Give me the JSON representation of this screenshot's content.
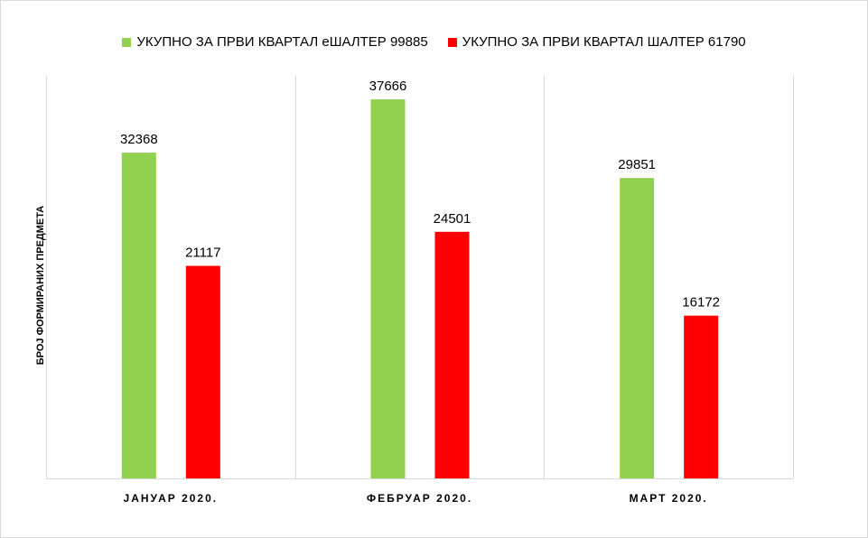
{
  "chart_data": {
    "type": "bar",
    "title": "",
    "xlabel": "",
    "ylabel": "БРОЈ ФОРМИРАНИХ ПРЕДМЕТА",
    "categories": [
      "ЈАНУАР 2020.",
      "ФЕБРУАР 2020.",
      "МАРТ 2020."
    ],
    "series": [
      {
        "name": "УКУПНО ЗА ПРВИ КВАРТАЛ еШАЛТЕР 99885",
        "color": "#92d050",
        "values": [
          32368,
          37666,
          29851
        ]
      },
      {
        "name": "УКУПНО ЗА ПРВИ КВАРТАЛ ШАЛТЕР 61790",
        "color": "#ff0000",
        "values": [
          21117,
          24501,
          16172
        ]
      }
    ],
    "ylim": [
      0,
      40000
    ],
    "grid": "vertical category separators",
    "legend_position": "top",
    "data_labels": true
  }
}
